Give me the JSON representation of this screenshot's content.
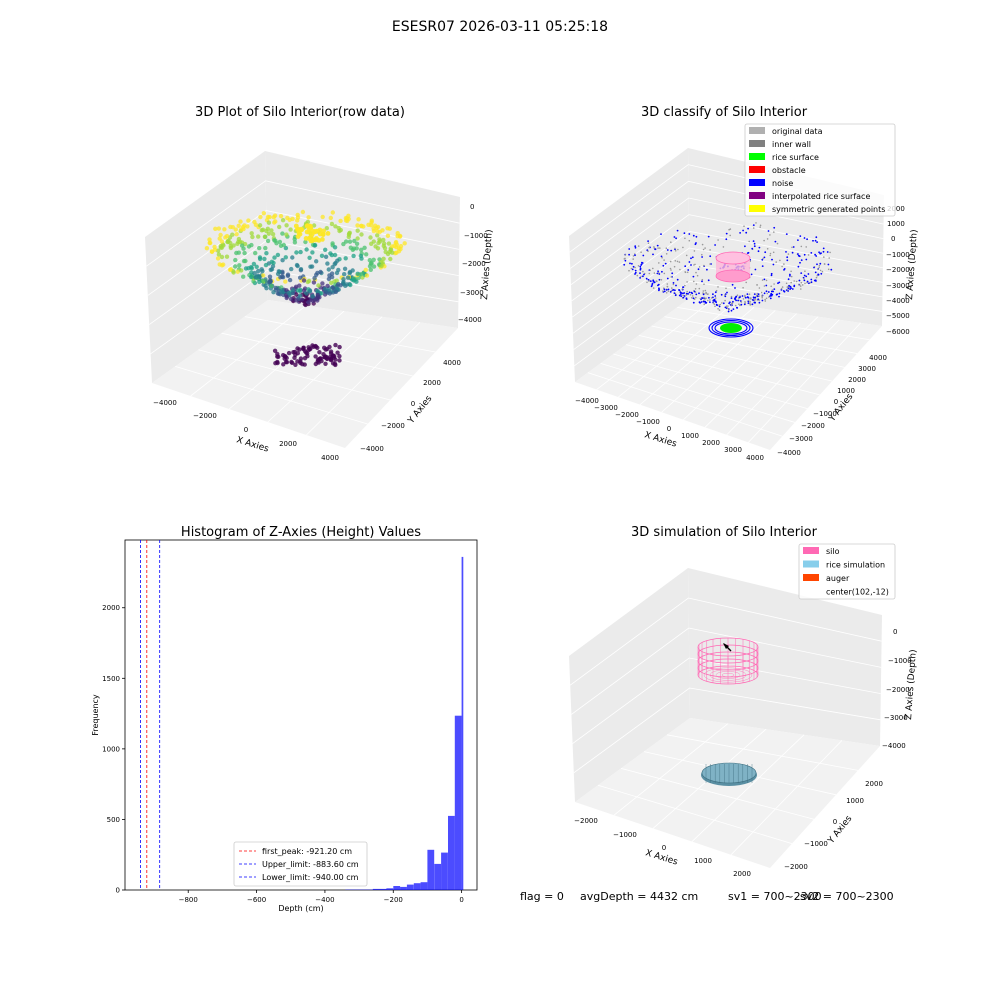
{
  "figure": {
    "suptitle": "ESESR07 2026-03-11 05:25:18",
    "footer_flag": "flag = 0",
    "footer_avg": "avgDepth = 4432 cm",
    "footer_sv1": "sv1 = 700~2300",
    "footer_sv2": "sv2 = 700~2300"
  },
  "panel1": {
    "title": "3D Plot of Silo Interior(row data)",
    "xlabel": "X Axies",
    "ylabel": "Y Axies",
    "zlabel": "Z Axies (Depth)",
    "x_ticks": [
      "−4000",
      "−2000",
      "0",
      "2000",
      "4000"
    ],
    "y_ticks": [
      "−4000",
      "−2000",
      "0",
      "2000",
      "4000"
    ],
    "z_ticks": [
      "0",
      "−1000",
      "−2000",
      "−3000",
      "−4000"
    ],
    "colormap": "viridis"
  },
  "panel2": {
    "title": "3D classify of Silo Interior",
    "xlabel": "X Axies",
    "ylabel": "Y Axies",
    "zlabel": "Z Axies (Depth)",
    "x_ticks": [
      "−4000",
      "−3000",
      "−2000",
      "−1000",
      "0",
      "1000",
      "2000",
      "3000",
      "4000"
    ],
    "y_ticks": [
      "−4000",
      "−3000",
      "−2000",
      "−1000",
      "0",
      "1000",
      "2000",
      "3000",
      "4000"
    ],
    "z_ticks": [
      "2000",
      "1000",
      "0",
      "−1000",
      "−2000",
      "−3000",
      "−4000",
      "−5000",
      "−6000"
    ],
    "legend": [
      {
        "label": "original data",
        "color": "#b0b0b0"
      },
      {
        "label": "inner wall",
        "color": "#808080"
      },
      {
        "label": "rice surface",
        "color": "#00ff00"
      },
      {
        "label": "obstacle",
        "color": "#ff0000"
      },
      {
        "label": "noise",
        "color": "#0000ff"
      },
      {
        "label": "interpolated rice surface",
        "color": "#800080"
      },
      {
        "label": "symmetric generated points",
        "color": "#ffff00"
      }
    ]
  },
  "panel4": {
    "title": "3D simulation of Silo Interior",
    "xlabel": "X Axies",
    "ylabel": "Y Axies",
    "zlabel": "Z Axies (Depth)",
    "x_ticks": [
      "−2000",
      "−1000",
      "0",
      "1000",
      "2000"
    ],
    "y_ticks": [
      "−2000",
      "−1000",
      "0",
      "1000",
      "2000"
    ],
    "z_ticks": [
      "0",
      "−1000",
      "−2000",
      "−3000",
      "−4000"
    ],
    "legend": [
      {
        "label": "silo",
        "color": "#ff69b4"
      },
      {
        "label": "rice simulation",
        "color": "#87ceeb"
      },
      {
        "label": "auger",
        "color": "#ff4500"
      },
      {
        "label": "center(102,-12)",
        "color": ""
      }
    ]
  },
  "chart_data": [
    {
      "type": "histogram",
      "title": "Histogram of Z-Axies (Height) Values",
      "xlabel": "Depth (cm)",
      "ylabel": "Frequency",
      "xlim": [
        -985,
        45
      ],
      "ylim": [
        0,
        2480
      ],
      "x_ticks": [
        -800,
        -600,
        -400,
        -200,
        0
      ],
      "x_tick_labels": [
        "−800",
        "−600",
        "−400",
        "−200",
        "0"
      ],
      "y_ticks": [
        0,
        500,
        1000,
        1500,
        2000
      ],
      "bar_color": "#0000ff",
      "bar_opacity": 0.7,
      "bins": [
        {
          "left": -340,
          "right": -260,
          "count": 3
        },
        {
          "left": -260,
          "right": -220,
          "count": 8
        },
        {
          "left": -220,
          "right": -200,
          "count": 12
        },
        {
          "left": -200,
          "right": -180,
          "count": 28
        },
        {
          "left": -180,
          "right": -160,
          "count": 22
        },
        {
          "left": -160,
          "right": -140,
          "count": 38
        },
        {
          "left": -140,
          "right": -120,
          "count": 48
        },
        {
          "left": -120,
          "right": -100,
          "count": 55
        },
        {
          "left": -100,
          "right": -80,
          "count": 285
        },
        {
          "left": -80,
          "right": -60,
          "count": 185
        },
        {
          "left": -60,
          "right": -40,
          "count": 265
        },
        {
          "left": -40,
          "right": -20,
          "count": 525
        },
        {
          "left": -20,
          "right": 0,
          "count": 1235
        },
        {
          "left": 0,
          "right": 5,
          "count": 2360
        }
      ],
      "lines": [
        {
          "label": "first_peak: -921.20 cm",
          "x": -921.2,
          "color": "#ff0000"
        },
        {
          "label": "Upper_limit: -883.60 cm",
          "x": -883.6,
          "color": "#0000ff"
        },
        {
          "label": "Lower_limit: -940.00 cm",
          "x": -940.0,
          "color": "#0000ff"
        }
      ]
    }
  ]
}
